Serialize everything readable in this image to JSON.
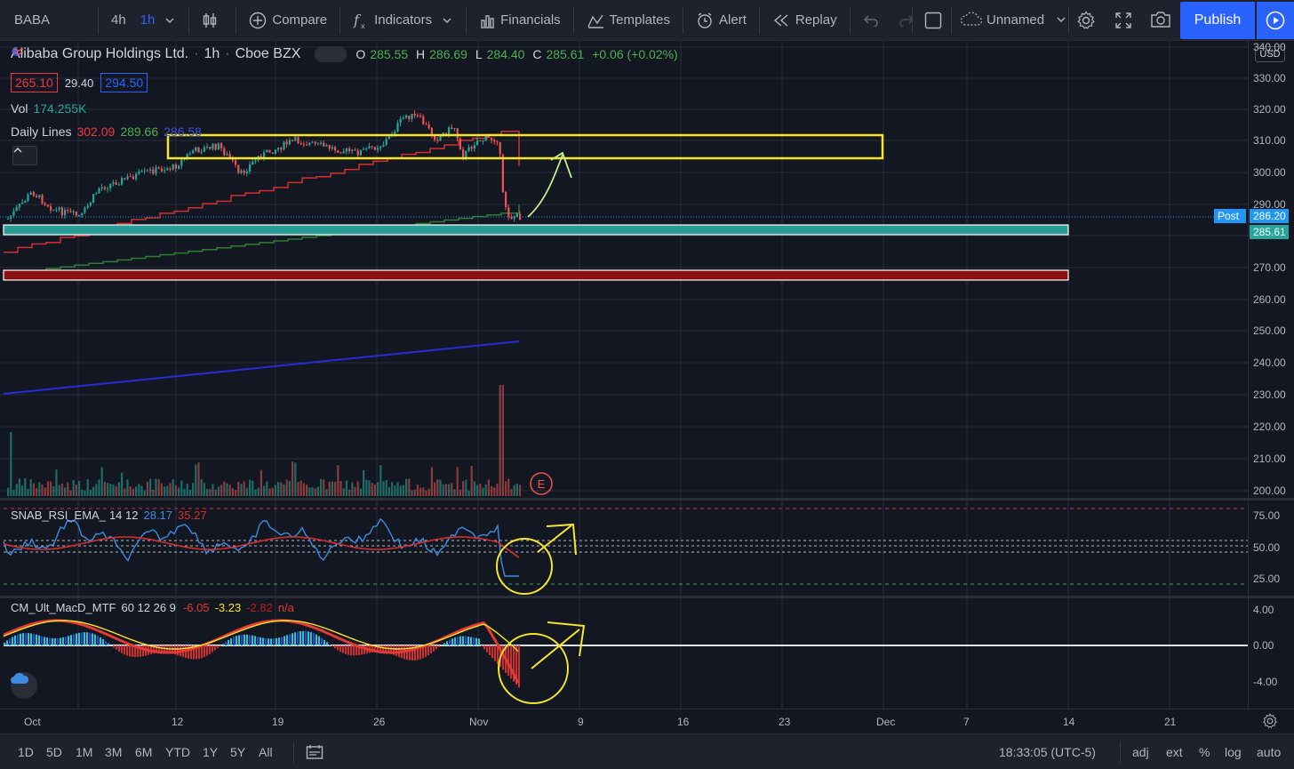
{
  "toolbar": {
    "symbol": "BABA",
    "intervals": [
      "4h",
      "1h"
    ],
    "active_interval": "1h",
    "compare_label": "Compare",
    "indicators_label": "Indicators",
    "financials_label": "Financials",
    "templates_label": "Templates",
    "alert_label": "Alert",
    "replay_label": "Replay",
    "layout_name": "Unnamed",
    "publish_label": "Publish"
  },
  "legend": {
    "name": "Alibaba Group Holdings Ltd.",
    "interval": "1h",
    "exchange": "Cboe BZX",
    "o_key": "O",
    "o_val": "285.55",
    "h_key": "H",
    "h_val": "286.69",
    "l_key": "L",
    "l_val": "284.40",
    "c_key": "C",
    "c_val": "285.61",
    "change": "+0.06 (+0.02%)",
    "box_left": "265.10",
    "box_mid": "29.40",
    "box_right": "294.50",
    "vol_label": "Vol",
    "vol_value": "174.255K",
    "daily_label": "Daily Lines",
    "daily_v1": "302.09",
    "daily_v2": "289.66",
    "daily_v3": "286.58"
  },
  "rsi_legend": {
    "name": "SNAB_RSI_EMA_",
    "params": "14 12",
    "v1": "28.17",
    "v2": "35.27"
  },
  "macd_legend": {
    "name": "CM_Ult_MacD_MTF",
    "params": "60 12 26 9",
    "v1": "-6.05",
    "v2": "-3.23",
    "v3": "-2.82",
    "v4": "n/a"
  },
  "price_axis": {
    "currency": "USD",
    "labels": [
      "340.00",
      "330.00",
      "320.00",
      "310.00",
      "300.00",
      "290.00",
      "270.00",
      "260.00",
      "250.00",
      "240.00",
      "230.00",
      "220.00",
      "210.00",
      "200.00"
    ],
    "post_label": "Post",
    "post_price": "286.20",
    "last_price": "285.61",
    "rsi_labels": [
      "75.00",
      "50.00",
      "25.00"
    ],
    "macd_labels": [
      "4.00",
      "0.00",
      "-4.00"
    ]
  },
  "time_axis": {
    "labels": [
      "Oct",
      "12",
      "19",
      "26",
      "Nov",
      "9",
      "16",
      "23",
      "Dec",
      "7",
      "14",
      "21"
    ]
  },
  "bottom_bar": {
    "ranges": [
      "1D",
      "5D",
      "1M",
      "3M",
      "6M",
      "YTD",
      "1Y",
      "5Y",
      "All"
    ],
    "clock": "18:33:05 (UTC-5)",
    "adj": "adj",
    "ext": "ext",
    "pct": "%",
    "log": "log",
    "auto": "auto"
  },
  "earnings_marker": "E",
  "colors": {
    "background": "#131722",
    "up": "#26a69a",
    "down": "#ef5350",
    "accent": "#2962ff",
    "annotation": "#f5e52d",
    "zone_teal": "#2a9d96",
    "zone_red": "#8b1010"
  }
}
